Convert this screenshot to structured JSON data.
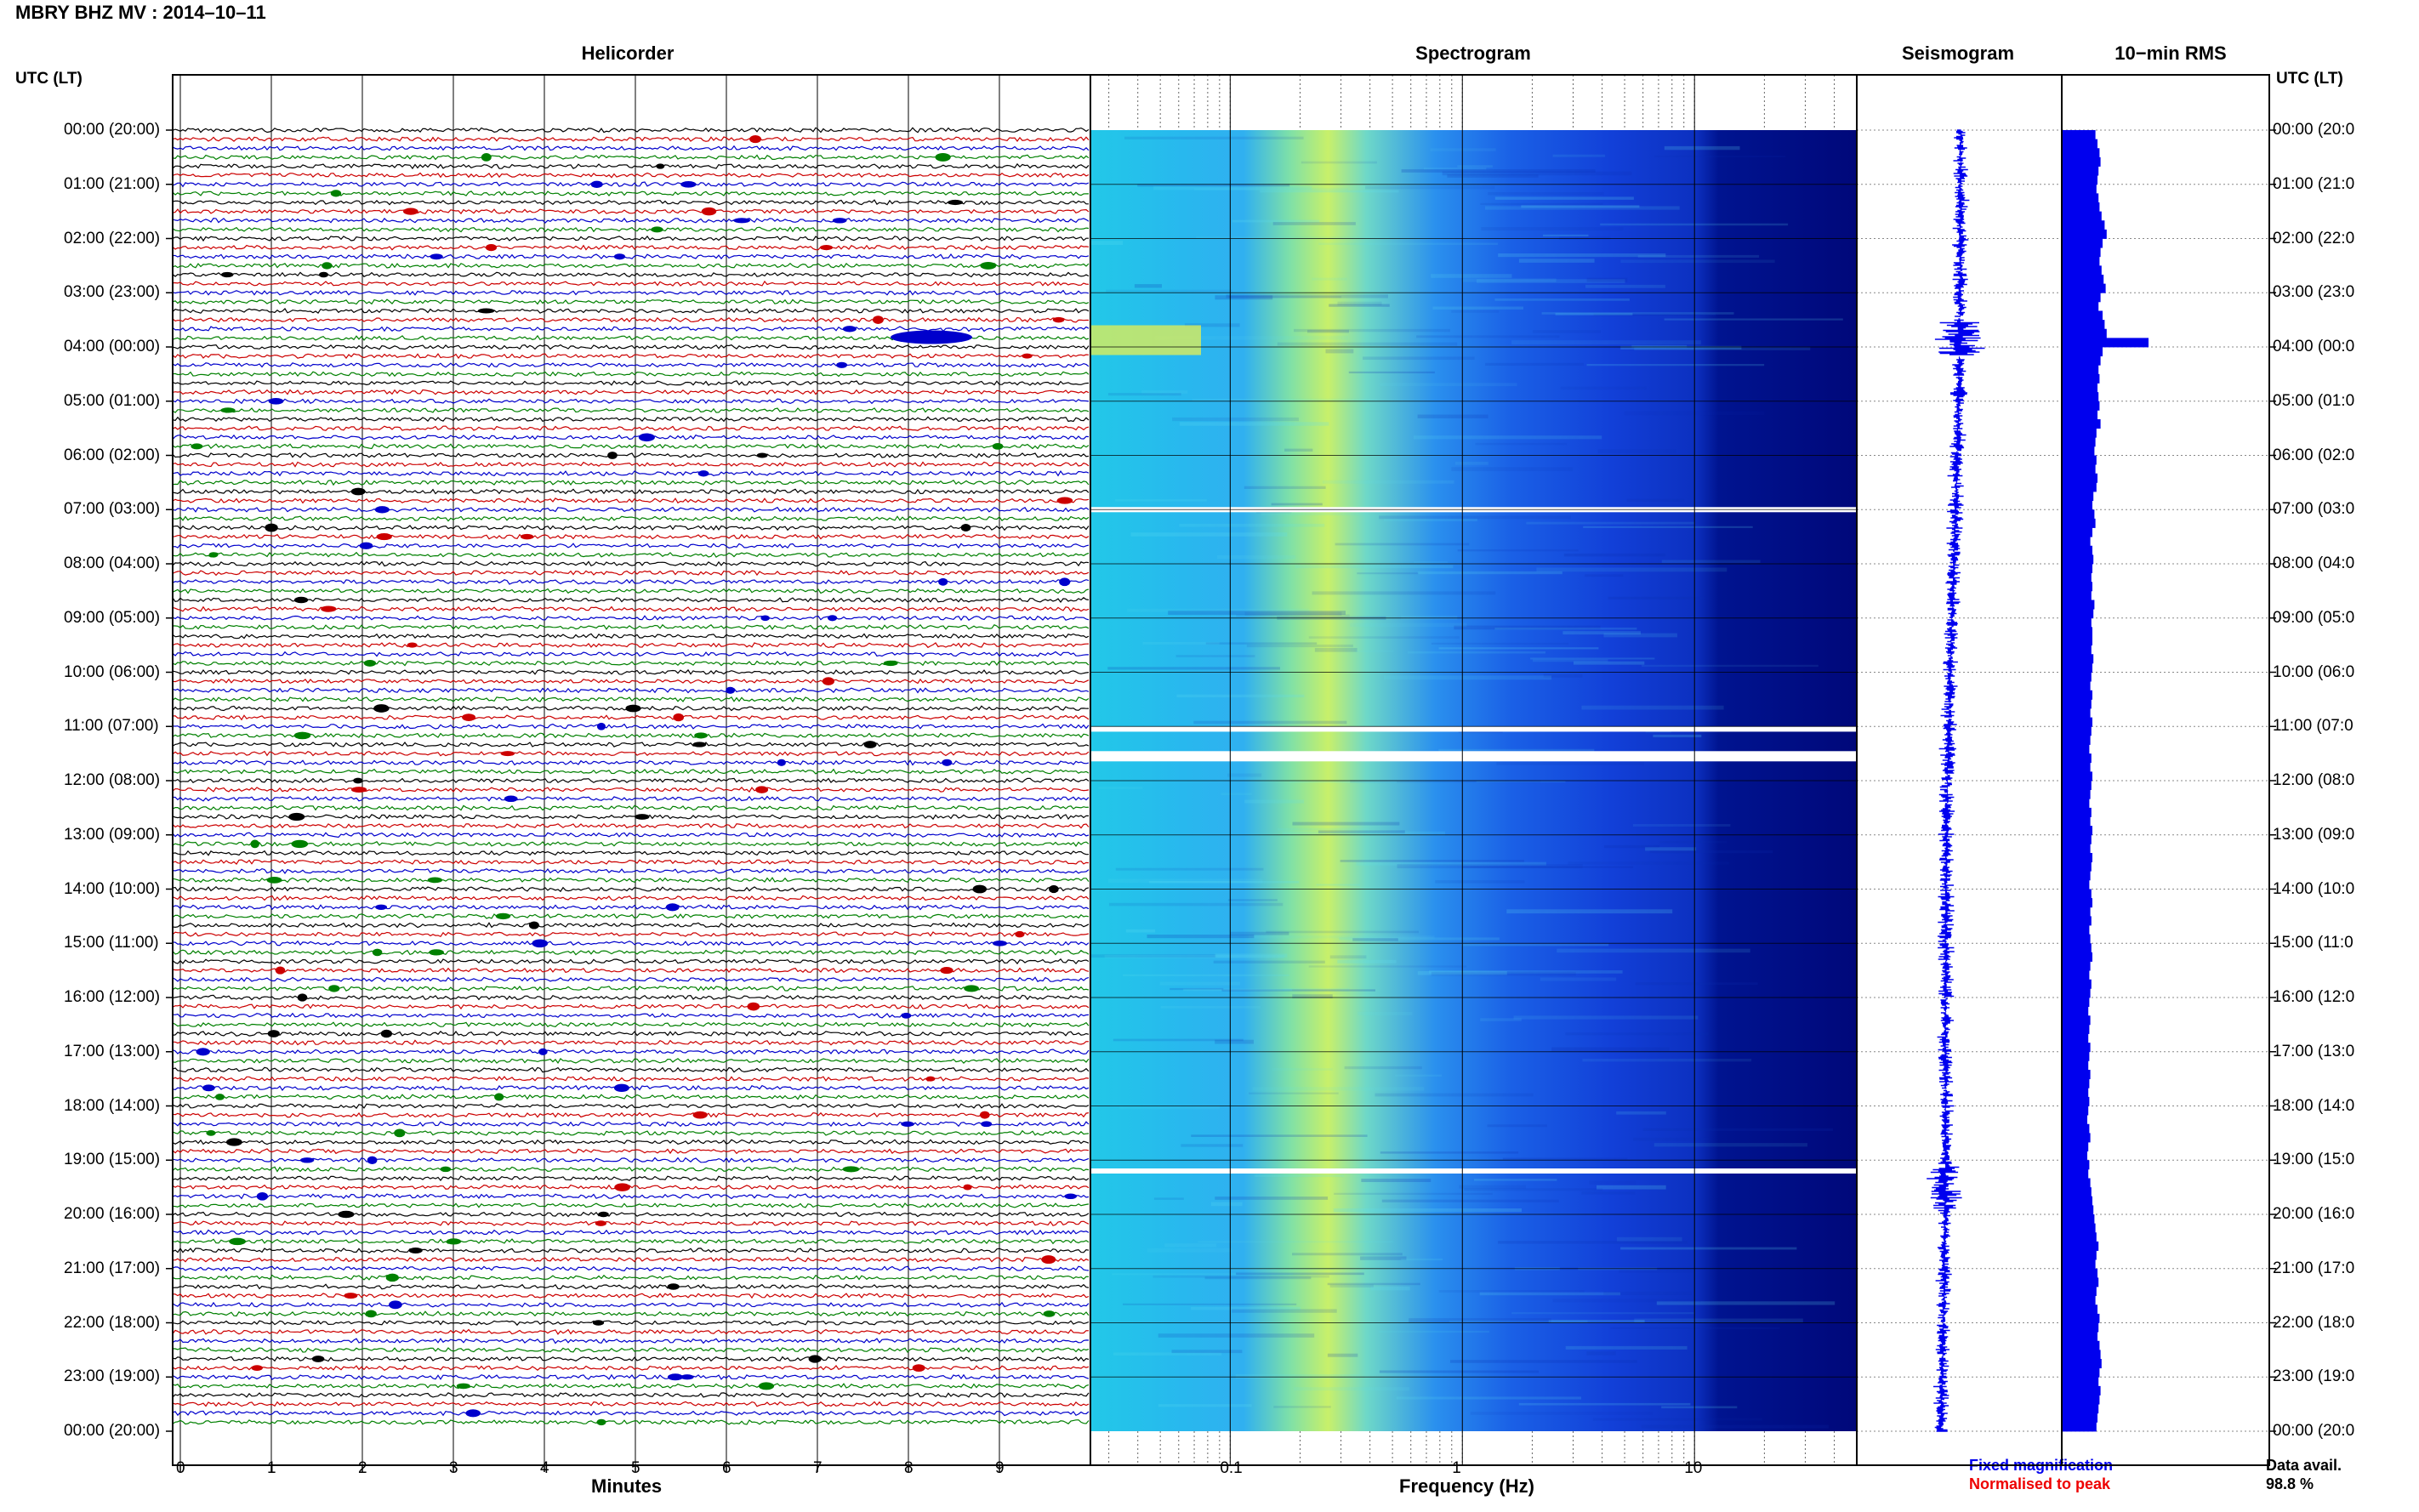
{
  "header": {
    "title": "MBRY BHZ MV : 2014–10–11"
  },
  "panels": {
    "helicorder": "Helicorder",
    "spectrogram": "Spectrogram",
    "seismogram": "Seismogram",
    "rms": "10−min RMS"
  },
  "axis_titles": {
    "utc_left": "UTC (LT)",
    "utc_right": "UTC (LT)"
  },
  "time_labels": [
    "00:00 (20:00)",
    "01:00 (21:00)",
    "02:00 (22:00)",
    "03:00 (23:00)",
    "04:00 (00:00)",
    "05:00 (01:00)",
    "06:00 (02:00)",
    "07:00 (03:00)",
    "08:00 (04:00)",
    "09:00 (05:00)",
    "10:00 (06:00)",
    "11:00 (07:00)",
    "12:00 (08:00)",
    "13:00 (09:00)",
    "14:00 (10:00)",
    "15:00 (11:00)",
    "16:00 (12:00)",
    "17:00 (13:00)",
    "18:00 (14:00)",
    "19:00 (15:00)",
    "20:00 (16:00)",
    "21:00 (17:00)",
    "22:00 (18:00)",
    "23:00 (19:00)",
    "00:00 (20:00)"
  ],
  "right_time_labels": [
    "00:00 (20:0",
    "01:00 (21:0",
    "02:00 (22:0",
    "03:00 (23:0",
    "04:00 (00:0",
    "05:00 (01:0",
    "06:00 (02:0",
    "07:00 (03:0",
    "08:00 (04:0",
    "09:00 (05:0",
    "10:00 (06:0",
    "11:00 (07:0",
    "12:00 (08:0",
    "13:00 (09:0",
    "14:00 (10:0",
    "15:00 (11:0",
    "16:00 (12:0",
    "17:00 (13:0",
    "18:00 (14:0",
    "19:00 (15:0",
    "20:00 (16:0",
    "21:00 (17:0",
    "22:00 (18:0",
    "23:00 (19:0",
    "00:00 (20:0"
  ],
  "helicorder": {
    "xlabel": "Minutes",
    "xticks": [
      "0",
      "1",
      "2",
      "3",
      "4",
      "5",
      "6",
      "7",
      "8",
      "9"
    ],
    "trace_colors": [
      "#000000",
      "#cc0000",
      "#0000cc",
      "#008000"
    ],
    "traces_per_hour": 6
  },
  "spectrogram": {
    "xlabel": "Frequency (Hz)",
    "xticks": [
      "0.1",
      "1",
      "10"
    ],
    "xlim": [
      0.025,
      50
    ],
    "scale": "log",
    "gaps_utc_hours": [
      7.0,
      11.05,
      11.55,
      19.2
    ]
  },
  "rms": {
    "values": [
      0.33,
      0.35,
      0.37,
      0.38,
      0.36,
      0.35,
      0.34,
      0.36,
      0.37,
      0.39,
      0.42,
      0.44,
      0.4,
      0.38,
      0.37,
      0.39,
      0.41,
      0.43,
      0.38,
      0.36,
      0.4,
      0.42,
      0.44,
      0.85,
      0.4,
      0.38,
      0.36,
      0.37,
      0.35,
      0.36,
      0.37,
      0.35,
      0.38,
      0.34,
      0.33,
      0.32,
      0.34,
      0.33,
      0.35,
      0.34,
      0.31,
      0.3,
      0.32,
      0.33,
      0.3,
      0.28,
      0.3,
      0.31,
      0.3,
      0.29,
      0.3,
      0.29,
      0.32,
      0.31,
      0.29,
      0.3,
      0.3,
      0.29,
      0.31,
      0.3,
      0.29,
      0.28,
      0.3,
      0.29,
      0.28,
      0.3,
      0.29,
      0.28,
      0.27,
      0.29,
      0.28,
      0.3,
      0.29,
      0.28,
      0.27,
      0.29,
      0.28,
      0.3,
      0.29,
      0.28,
      0.3,
      0.29,
      0.28,
      0.27,
      0.29,
      0.3,
      0.28,
      0.29,
      0.27,
      0.28,
      0.29,
      0.3,
      0.28,
      0.27,
      0.29,
      0.28,
      0.27,
      0.26,
      0.28,
      0.27,
      0.26,
      0.28,
      0.27,
      0.26,
      0.28,
      0.27,
      0.26,
      0.27,
      0.26,
      0.25,
      0.27,
      0.28,
      0.26,
      0.25,
      0.27,
      0.26,
      0.28,
      0.29,
      0.3,
      0.31,
      0.32,
      0.33,
      0.34,
      0.36,
      0.34,
      0.33,
      0.35,
      0.36,
      0.34,
      0.33,
      0.35,
      0.37,
      0.36,
      0.35,
      0.37,
      0.38,
      0.39,
      0.37,
      0.36,
      0.38,
      0.37,
      0.36,
      0.35,
      0.34
    ]
  },
  "legend": {
    "fixed": "Fixed magnification",
    "normalised": "Normalised to peak",
    "fixed_color": "#0000ee",
    "normalised_color": "#ee0000"
  },
  "data_avail": {
    "label": "Data avail.",
    "value": "98.8 %"
  },
  "chart_data": {
    "type": "heatmap",
    "title": "MBRY BHZ MV : 2014–10–11",
    "panels": [
      "Helicorder",
      "Spectrogram",
      "Seismogram",
      "10−min RMS"
    ],
    "y_axis": "UTC (LT)",
    "helicorder_x": {
      "label": "Minutes",
      "range": [
        0,
        10
      ]
    },
    "spectrogram_x": {
      "label": "Frequency (Hz)",
      "range": [
        0.025,
        50
      ],
      "scale": "log"
    },
    "data_availability_percent": 98.8
  }
}
